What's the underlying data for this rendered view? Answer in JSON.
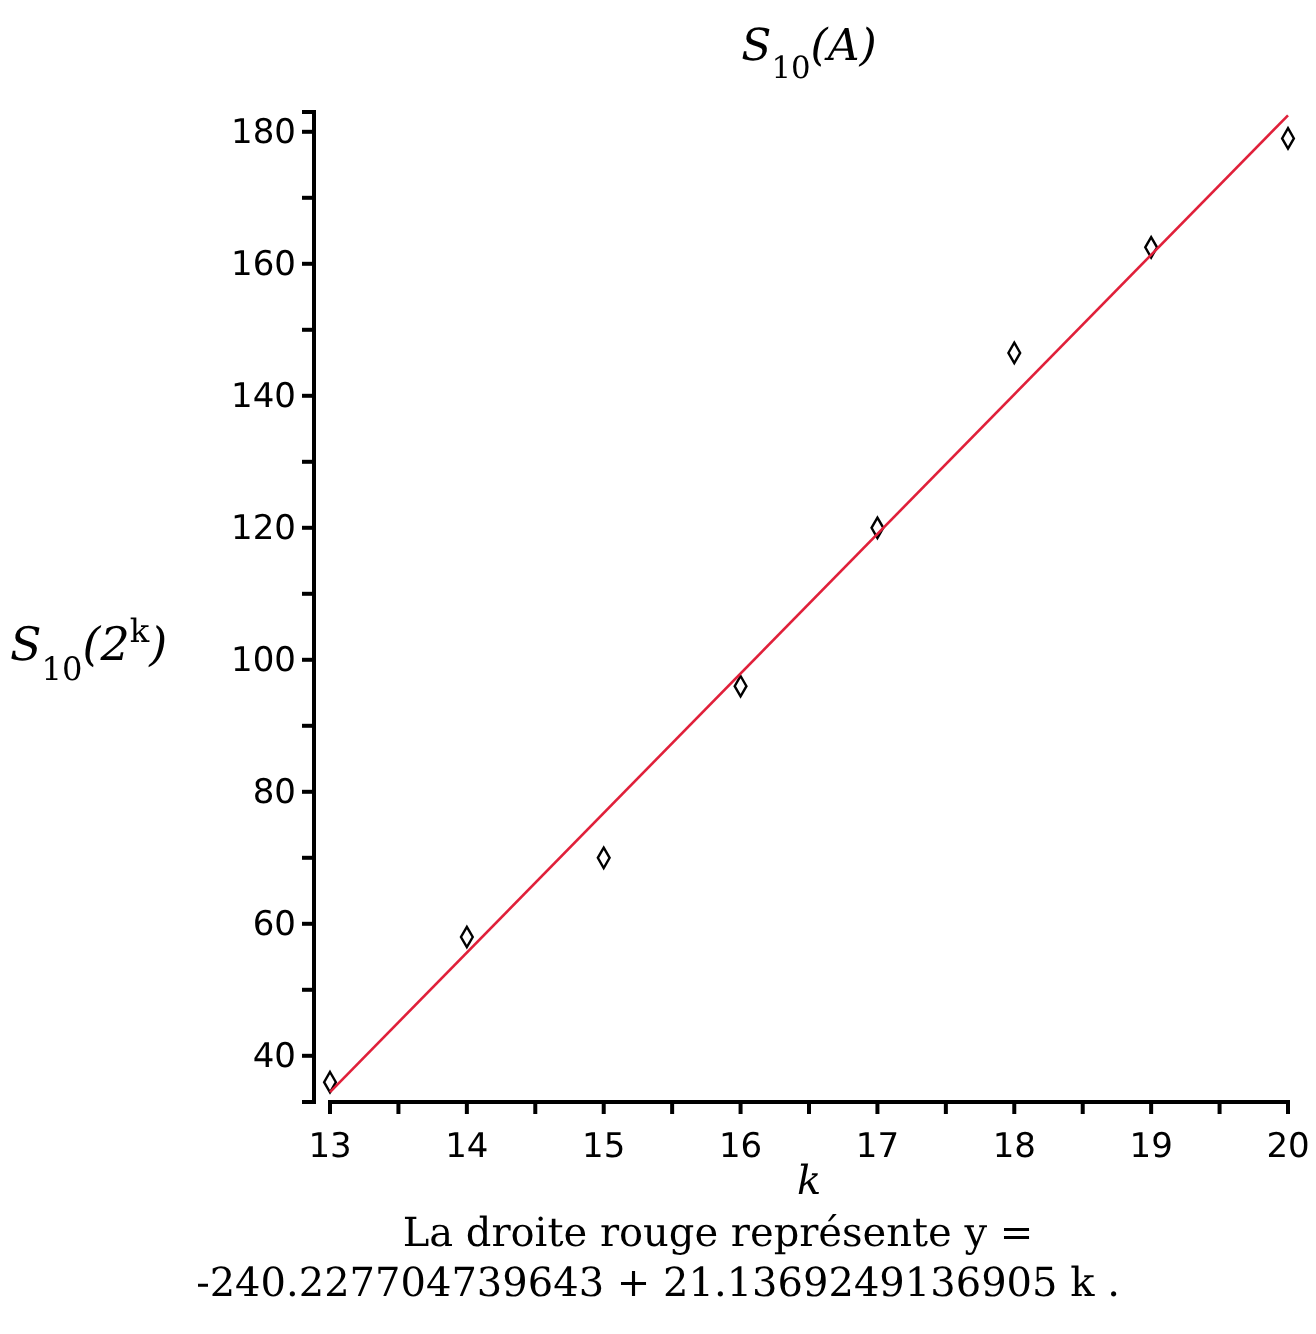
{
  "chart_data": {
    "type": "scatter",
    "title": "S$_{10}$(A)",
    "xlabel": "k",
    "ylabel": "S$_{10}$(2$^{k}$)",
    "annotations": [
      "La droite rouge représente  y =",
      "-240.227704739643 + 21.1369249136905 k ."
    ],
    "x": [
      13,
      14,
      15,
      16,
      17,
      18,
      19,
      20
    ],
    "series": [
      {
        "color": "#000000",
        "marker": "diamond",
        "values": [
          36,
          58,
          70,
          96,
          120,
          146.5,
          162.5,
          179
        ]
      },
      {
        "type": "line",
        "color": "#e0203a",
        "marker": "none",
        "line_style": "solid",
        "x": [
          13,
          20
        ],
        "values": [
          34.5,
          182.5
        ]
      }
    ],
    "xlim": [
      13,
      20
    ],
    "ylim": [
      33,
      183
    ],
    "xticks": [
      13,
      {
        "value": 13.5,
        "label": null
      },
      14,
      {
        "value": 14.5,
        "label": null
      },
      15,
      {
        "value": 15.5,
        "label": null
      },
      16,
      {
        "value": 16.5,
        "label": null
      },
      17,
      {
        "value": 17.5,
        "label": null
      },
      18,
      {
        "value": 18.5,
        "label": null
      },
      19,
      {
        "value": 19.5,
        "label": null
      },
      20
    ],
    "yticks": [
      40,
      {
        "value": 50,
        "label": null
      },
      60,
      {
        "value": 70,
        "label": null
      },
      80,
      {
        "value": 90,
        "label": null
      },
      100,
      {
        "value": 110,
        "label": null
      },
      120,
      {
        "value": 130,
        "label": null
      },
      140,
      {
        "value": 150,
        "label": null
      },
      160,
      {
        "value": 170,
        "label": null
      },
      180
    ],
    "grid": false
  }
}
